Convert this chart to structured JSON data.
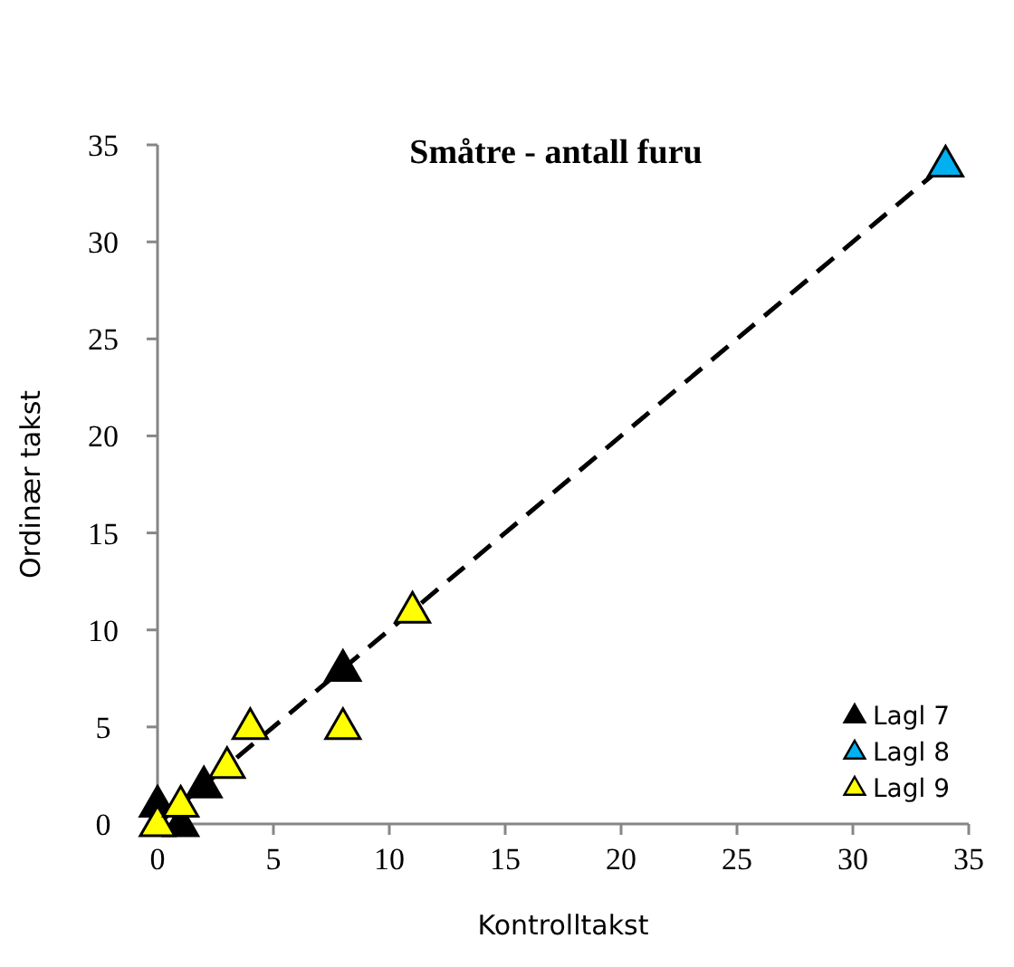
{
  "chart_data": {
    "type": "scatter",
    "title": "Småtre - antall furu",
    "xlabel": "Kontrolltakst",
    "ylabel": "Ordinær takst",
    "xlim": [
      0,
      35
    ],
    "ylim": [
      0,
      35
    ],
    "xticks": [
      0,
      5,
      10,
      15,
      20,
      25,
      30,
      35
    ],
    "yticks": [
      0,
      5,
      10,
      15,
      20,
      25,
      30,
      35
    ],
    "grid": false,
    "legend": "bottom right",
    "marker": "triangle",
    "series": [
      {
        "type": "line",
        "color": "#000000",
        "line_style": "dashed",
        "marker": "none",
        "x": [
          0,
          34
        ],
        "values": [
          0,
          34
        ]
      },
      {
        "name": "Lagl 7",
        "color": "#000000",
        "x": [
          0,
          1,
          2,
          8
        ],
        "values": [
          1,
          0,
          2,
          8
        ]
      },
      {
        "name": "Lagl 8",
        "color": "#00b0f0",
        "x": [
          34
        ],
        "values": [
          34
        ]
      },
      {
        "name": "Lagl 9",
        "color": "#ffff00",
        "x": [
          0,
          1,
          3,
          4,
          8,
          11
        ],
        "values": [
          0,
          1,
          3,
          5,
          5,
          11
        ]
      }
    ]
  }
}
